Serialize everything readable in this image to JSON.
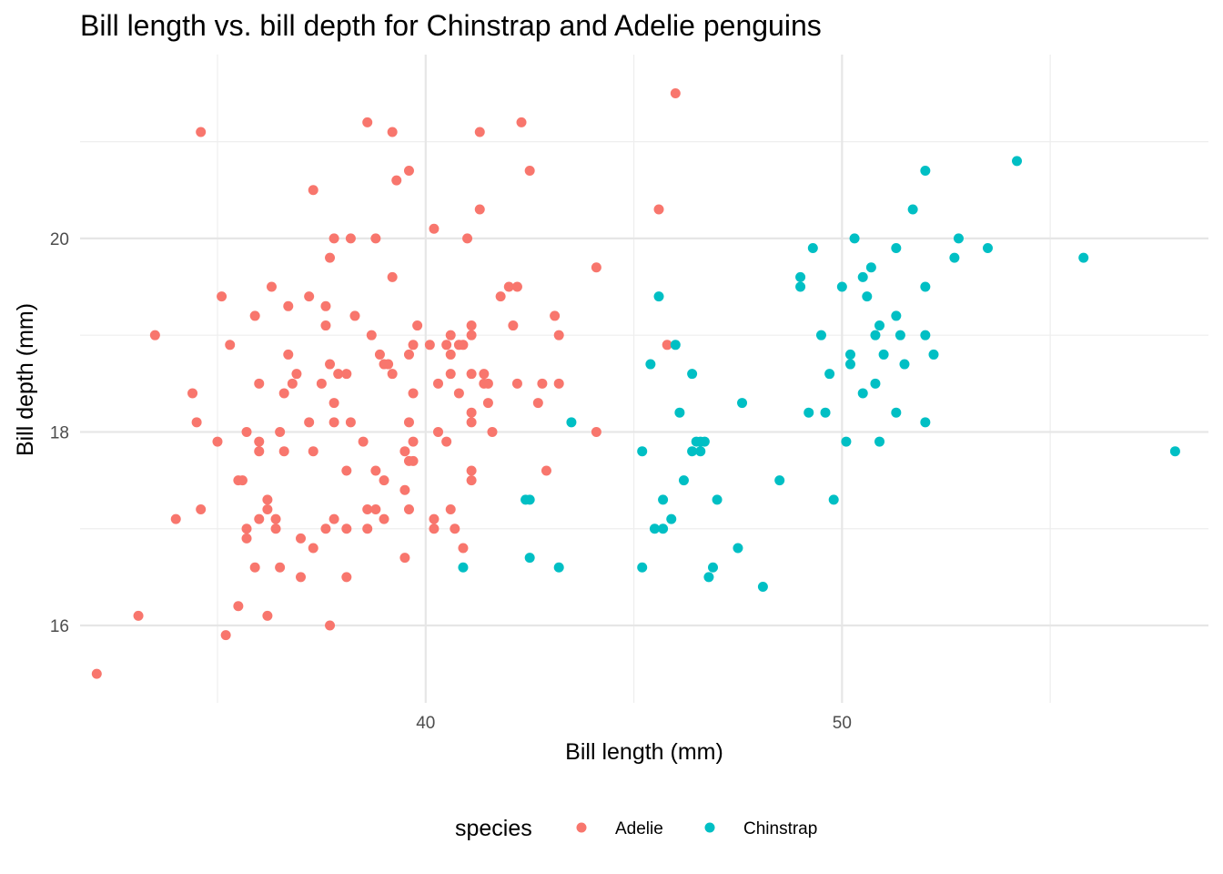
{
  "chart_data": {
    "type": "scatter",
    "title": "Bill length vs. bill depth for Chinstrap and Adelie penguins",
    "xlabel": "Bill length (mm)",
    "ylabel": "Bill depth (mm)",
    "xlim": [
      31.7,
      58.8
    ],
    "ylim": [
      15.2,
      21.9
    ],
    "x_ticks": [
      40,
      50
    ],
    "x_minor_ticks": [
      35,
      45,
      55
    ],
    "y_ticks": [
      16,
      18,
      20
    ],
    "y_minor_ticks": [
      17,
      19,
      21
    ],
    "grid": true,
    "legend": {
      "title": "species",
      "position": "bottom"
    },
    "series": [
      {
        "name": "Adelie",
        "color": "#F8766D",
        "points": [
          [
            32.1,
            15.5
          ],
          [
            33.1,
            16.1
          ],
          [
            33.5,
            19.0
          ],
          [
            34.0,
            17.1
          ],
          [
            34.4,
            18.4
          ],
          [
            34.5,
            18.1
          ],
          [
            34.6,
            21.1
          ],
          [
            34.6,
            17.2
          ],
          [
            35.0,
            17.9
          ],
          [
            35.1,
            19.4
          ],
          [
            35.2,
            15.9
          ],
          [
            35.3,
            18.9
          ],
          [
            35.5,
            16.2
          ],
          [
            35.5,
            17.5
          ],
          [
            35.6,
            17.5
          ],
          [
            35.7,
            16.9
          ],
          [
            35.7,
            17.0
          ],
          [
            35.7,
            18.0
          ],
          [
            35.9,
            16.6
          ],
          [
            35.9,
            19.2
          ],
          [
            36.0,
            17.1
          ],
          [
            36.0,
            17.8
          ],
          [
            36.0,
            18.5
          ],
          [
            36.0,
            17.9
          ],
          [
            36.2,
            16.1
          ],
          [
            36.2,
            17.2
          ],
          [
            36.2,
            17.3
          ],
          [
            36.3,
            19.5
          ],
          [
            36.4,
            17.0
          ],
          [
            36.4,
            17.1
          ],
          [
            36.5,
            16.6
          ],
          [
            36.5,
            18.0
          ],
          [
            36.6,
            17.8
          ],
          [
            36.6,
            18.4
          ],
          [
            36.7,
            19.3
          ],
          [
            36.7,
            18.8
          ],
          [
            36.8,
            18.5
          ],
          [
            36.9,
            18.6
          ],
          [
            37.0,
            16.9
          ],
          [
            37.0,
            16.5
          ],
          [
            37.2,
            18.1
          ],
          [
            37.2,
            19.4
          ],
          [
            37.3,
            20.5
          ],
          [
            37.3,
            16.8
          ],
          [
            37.3,
            17.8
          ],
          [
            37.5,
            18.5
          ],
          [
            37.6,
            17.0
          ],
          [
            37.6,
            19.1
          ],
          [
            37.6,
            19.3
          ],
          [
            37.7,
            18.7
          ],
          [
            37.7,
            16.0
          ],
          [
            37.7,
            19.8
          ],
          [
            37.8,
            18.1
          ],
          [
            37.8,
            17.1
          ],
          [
            37.8,
            18.3
          ],
          [
            37.8,
            20.0
          ],
          [
            37.9,
            18.6
          ],
          [
            38.1,
            18.6
          ],
          [
            38.1,
            17.0
          ],
          [
            38.1,
            16.5
          ],
          [
            38.1,
            17.6
          ],
          [
            38.2,
            18.1
          ],
          [
            38.2,
            20.0
          ],
          [
            38.3,
            19.2
          ],
          [
            38.5,
            17.9
          ],
          [
            38.6,
            21.2
          ],
          [
            38.6,
            17.2
          ],
          [
            38.6,
            17.0
          ],
          [
            38.7,
            19.0
          ],
          [
            38.8,
            17.2
          ],
          [
            38.8,
            20.0
          ],
          [
            38.8,
            17.6
          ],
          [
            38.9,
            18.8
          ],
          [
            39.0,
            17.1
          ],
          [
            39.0,
            17.5
          ],
          [
            39.0,
            18.7
          ],
          [
            39.1,
            18.7
          ],
          [
            39.2,
            21.1
          ],
          [
            39.2,
            19.6
          ],
          [
            39.2,
            18.6
          ],
          [
            39.3,
            20.6
          ],
          [
            39.5,
            17.4
          ],
          [
            39.5,
            16.7
          ],
          [
            39.5,
            17.8
          ],
          [
            39.6,
            17.7
          ],
          [
            39.6,
            18.8
          ],
          [
            39.6,
            20.7
          ],
          [
            39.6,
            18.1
          ],
          [
            39.6,
            17.2
          ],
          [
            39.7,
            17.7
          ],
          [
            39.7,
            18.4
          ],
          [
            39.7,
            17.9
          ],
          [
            39.7,
            18.9
          ],
          [
            39.8,
            19.1
          ],
          [
            40.1,
            18.9
          ],
          [
            40.2,
            17.0
          ],
          [
            40.2,
            17.1
          ],
          [
            40.2,
            20.1
          ],
          [
            40.3,
            18.0
          ],
          [
            40.3,
            18.5
          ],
          [
            40.5,
            17.9
          ],
          [
            40.5,
            18.9
          ],
          [
            40.6,
            18.6
          ],
          [
            40.6,
            18.8
          ],
          [
            40.6,
            17.2
          ],
          [
            40.6,
            19.0
          ],
          [
            40.7,
            17.0
          ],
          [
            40.8,
            18.4
          ],
          [
            40.8,
            18.9
          ],
          [
            40.9,
            16.8
          ],
          [
            40.9,
            18.9
          ],
          [
            41.0,
            20.0
          ],
          [
            41.1,
            18.6
          ],
          [
            41.1,
            17.5
          ],
          [
            41.1,
            18.2
          ],
          [
            41.1,
            19.0
          ],
          [
            41.1,
            17.6
          ],
          [
            41.1,
            18.1
          ],
          [
            41.1,
            19.1
          ],
          [
            41.3,
            21.1
          ],
          [
            41.3,
            20.3
          ],
          [
            41.4,
            18.6
          ],
          [
            41.4,
            18.5
          ],
          [
            41.5,
            18.5
          ],
          [
            41.5,
            18.3
          ],
          [
            41.6,
            18.0
          ],
          [
            41.8,
            19.4
          ],
          [
            42.0,
            19.5
          ],
          [
            42.1,
            19.1
          ],
          [
            42.2,
            18.5
          ],
          [
            42.2,
            19.5
          ],
          [
            42.3,
            21.2
          ],
          [
            42.5,
            20.7
          ],
          [
            42.7,
            18.3
          ],
          [
            42.8,
            18.5
          ],
          [
            42.9,
            17.6
          ],
          [
            43.1,
            19.2
          ],
          [
            43.2,
            18.5
          ],
          [
            43.2,
            19.0
          ],
          [
            44.1,
            18.0
          ],
          [
            44.1,
            19.7
          ],
          [
            45.6,
            20.3
          ],
          [
            45.8,
            18.9
          ],
          [
            46.0,
            21.5
          ]
        ]
      },
      {
        "name": "Chinstrap",
        "color": "#00BFC4",
        "points": [
          [
            40.9,
            16.6
          ],
          [
            42.4,
            17.3
          ],
          [
            42.5,
            17.3
          ],
          [
            42.5,
            16.7
          ],
          [
            43.2,
            16.6
          ],
          [
            43.5,
            18.1
          ],
          [
            45.2,
            17.8
          ],
          [
            45.2,
            16.6
          ],
          [
            45.4,
            18.7
          ],
          [
            45.5,
            17.0
          ],
          [
            45.6,
            19.4
          ],
          [
            45.7,
            17.0
          ],
          [
            45.7,
            17.3
          ],
          [
            45.9,
            17.1
          ],
          [
            46.0,
            18.9
          ],
          [
            46.1,
            18.2
          ],
          [
            46.2,
            17.5
          ],
          [
            46.4,
            18.6
          ],
          [
            46.4,
            17.8
          ],
          [
            46.5,
            17.9
          ],
          [
            46.6,
            17.8
          ],
          [
            46.6,
            17.9
          ],
          [
            46.7,
            17.9
          ],
          [
            46.8,
            16.5
          ],
          [
            46.9,
            16.6
          ],
          [
            47.0,
            17.3
          ],
          [
            47.5,
            16.8
          ],
          [
            47.6,
            18.3
          ],
          [
            48.1,
            16.4
          ],
          [
            48.5,
            17.5
          ],
          [
            49.0,
            19.5
          ],
          [
            49.0,
            19.6
          ],
          [
            49.2,
            18.2
          ],
          [
            49.3,
            19.9
          ],
          [
            49.5,
            19.0
          ],
          [
            49.6,
            18.2
          ],
          [
            49.7,
            18.6
          ],
          [
            49.8,
            17.3
          ],
          [
            50.0,
            19.5
          ],
          [
            50.1,
            17.9
          ],
          [
            50.2,
            18.8
          ],
          [
            50.2,
            18.7
          ],
          [
            50.3,
            20.0
          ],
          [
            50.5,
            18.4
          ],
          [
            50.5,
            19.6
          ],
          [
            50.6,
            19.4
          ],
          [
            50.7,
            19.7
          ],
          [
            50.8,
            19.0
          ],
          [
            50.8,
            18.5
          ],
          [
            50.9,
            19.1
          ],
          [
            50.9,
            17.9
          ],
          [
            51.0,
            18.8
          ],
          [
            51.3,
            19.2
          ],
          [
            51.3,
            18.2
          ],
          [
            51.3,
            19.9
          ],
          [
            51.4,
            19.0
          ],
          [
            51.5,
            18.7
          ],
          [
            51.7,
            20.3
          ],
          [
            52.0,
            18.1
          ],
          [
            52.0,
            19.5
          ],
          [
            52.0,
            20.7
          ],
          [
            52.0,
            19.0
          ],
          [
            52.2,
            18.8
          ],
          [
            52.7,
            19.8
          ],
          [
            52.8,
            20.0
          ],
          [
            53.5,
            19.9
          ],
          [
            54.2,
            20.8
          ],
          [
            55.8,
            19.8
          ],
          [
            58.0,
            17.8
          ]
        ]
      }
    ]
  }
}
